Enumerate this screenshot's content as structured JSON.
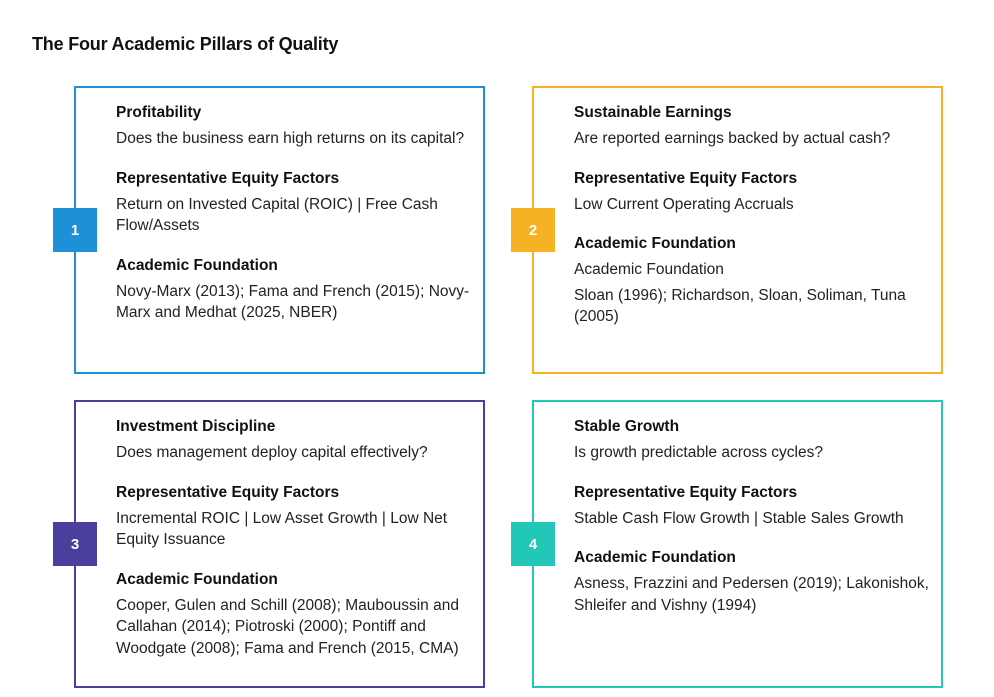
{
  "title": "The Four Academic Pillars of Quality",
  "colors": {
    "pillar1": "#1e90d6",
    "pillar2": "#f5b324",
    "pillar3": "#4b3f9e",
    "pillar4": "#22c7b8"
  },
  "pillars": [
    {
      "number": "1",
      "name": "Profitability",
      "question": "Does the business earn high returns on its capital?",
      "factors_heading": "Representative Equity Factors",
      "factors": "Return on Invested Capital (ROIC) | Free Cash Flow/Assets",
      "foundation_heading": "Academic Foundation",
      "foundation": "Novy-Marx (2013); Fama and French (2015); Novy-Marx and Medhat (2025, NBER)"
    },
    {
      "number": "2",
      "name": "Sustainable Earnings",
      "question": "Are reported earnings backed by actual cash?",
      "factors_heading": "Representative Equity Factors",
      "factors": "Low Current Operating Accruals",
      "foundation_heading": "Academic Foundation",
      "foundation_sub": "Academic Foundation",
      "foundation": "Sloan (1996); Richardson, Sloan, Soliman, Tuna (2005)"
    },
    {
      "number": "3",
      "name": "Investment Discipline",
      "question": "Does management deploy capital effectively?",
      "factors_heading": "Representative Equity Factors",
      "factors": "Incremental ROIC | Low Asset Growth | Low Net Equity Issuance",
      "foundation_heading": "Academic Foundation",
      "foundation": "Cooper, Gulen and Schill (2008); Mauboussin and Callahan (2014); Piotroski (2000); Pontiff and Woodgate (2008); Fama and French (2015, CMA)"
    },
    {
      "number": "4",
      "name": "Stable Growth",
      "question": "Is growth predictable across cycles?",
      "factors_heading": "Representative Equity Factors",
      "factors": "Stable Cash Flow Growth | Stable Sales Growth",
      "foundation_heading": "Academic Foundation",
      "foundation": "Asness, Frazzini and Pedersen (2019); Lakonishok, Shleifer and Vishny (1994)"
    }
  ]
}
